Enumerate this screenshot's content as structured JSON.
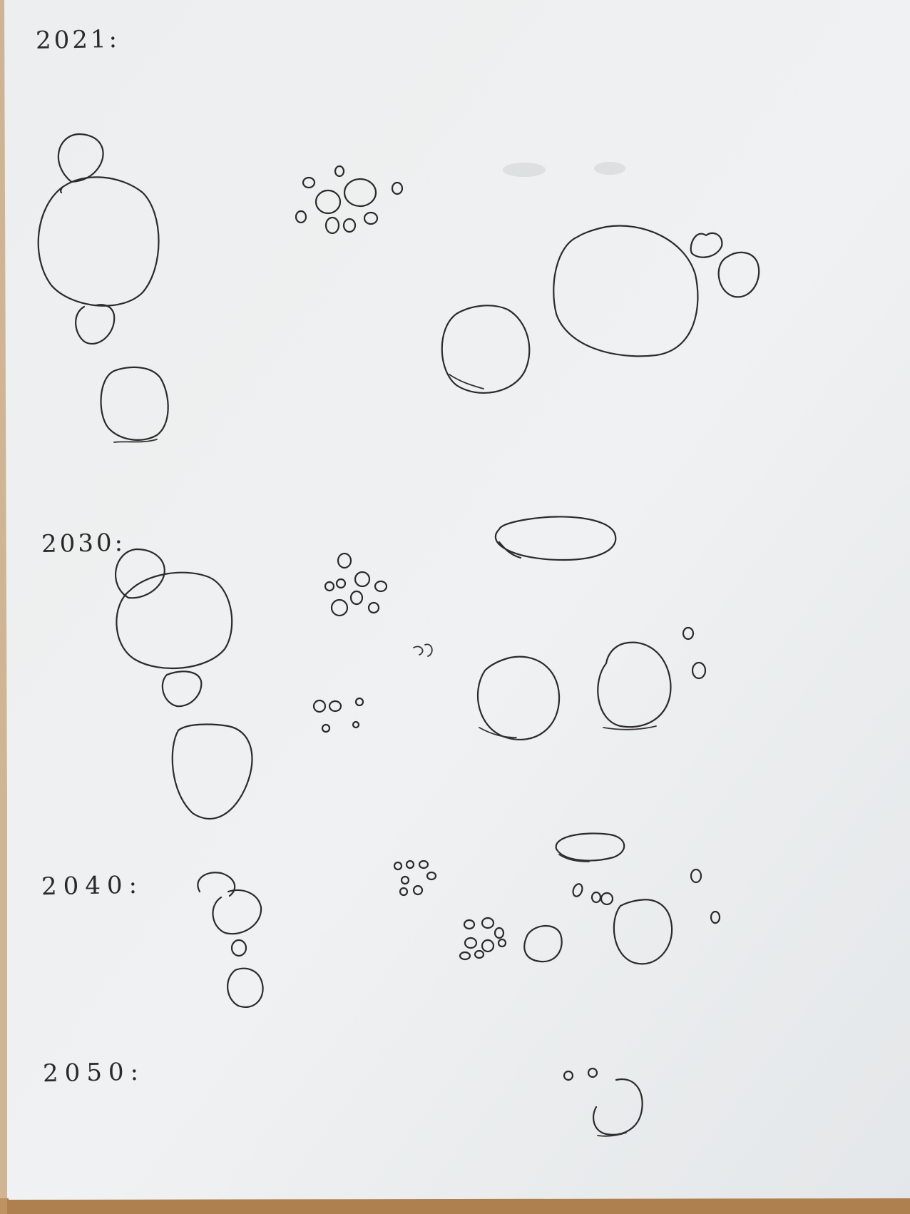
{
  "sections": [
    {
      "label": "2021:"
    },
    {
      "label": "2030:"
    },
    {
      "label": "2040:"
    },
    {
      "label": "2050:"
    }
  ],
  "colors": {
    "paper": "#eef0f1",
    "ink": "#2b2b2b",
    "table_wood": "#b98d5c"
  }
}
